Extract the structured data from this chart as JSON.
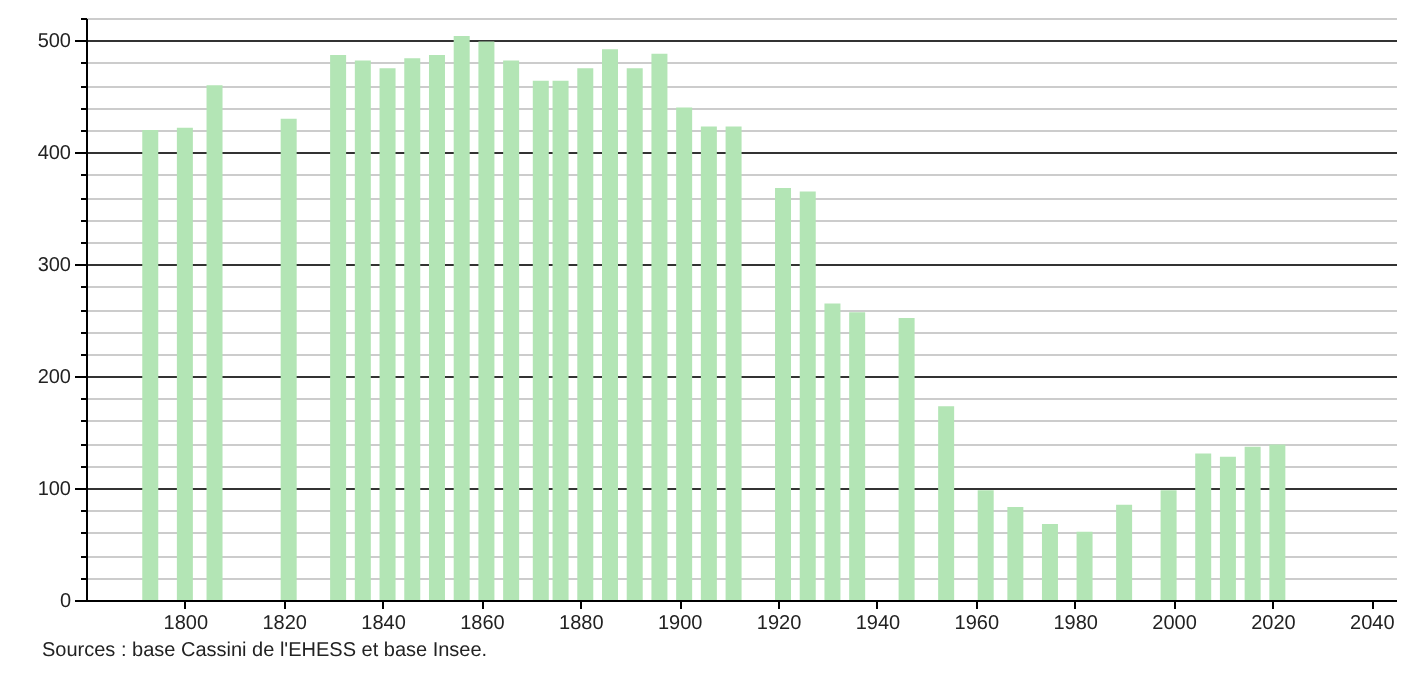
{
  "chart_data": {
    "type": "bar",
    "x": [
      1793,
      1800,
      1806,
      1821,
      1831,
      1836,
      1841,
      1846,
      1851,
      1856,
      1861,
      1866,
      1872,
      1876,
      1881,
      1886,
      1891,
      1896,
      1901,
      1906,
      1911,
      1921,
      1926,
      1931,
      1936,
      1946,
      1954,
      1962,
      1968,
      1975,
      1982,
      1990,
      1999,
      2006,
      2011,
      2016,
      2021
    ],
    "values": [
      420,
      422,
      460,
      430,
      487,
      482,
      475,
      484,
      487,
      504,
      499,
      482,
      464,
      464,
      475,
      492,
      475,
      488,
      440,
      423,
      423,
      368,
      365,
      265,
      257,
      252,
      173,
      98,
      83,
      68,
      61,
      85,
      98,
      131,
      128,
      137,
      139
    ],
    "color": "#b3e5b5",
    "xlim": [
      1780,
      2045
    ],
    "xticks": [
      1800,
      1820,
      1840,
      1860,
      1880,
      1900,
      1920,
      1940,
      1960,
      1980,
      2000,
      2020,
      2040
    ],
    "ylim": [
      0,
      520
    ],
    "yticks": [
      0,
      {
        "value": 20,
        "label": null
      },
      {
        "value": 40,
        "label": null
      },
      {
        "value": 60,
        "label": null
      },
      {
        "value": 80,
        "label": null
      },
      100,
      {
        "value": 120,
        "label": null
      },
      {
        "value": 140,
        "label": null
      },
      {
        "value": 160,
        "label": null
      },
      {
        "value": 180,
        "label": null
      },
      200,
      {
        "value": 220,
        "label": null
      },
      {
        "value": 240,
        "label": null
      },
      {
        "value": 260,
        "label": null
      },
      {
        "value": 280,
        "label": null
      },
      300,
      {
        "value": 320,
        "label": null
      },
      {
        "value": 340,
        "label": null
      },
      {
        "value": 360,
        "label": null
      },
      {
        "value": 380,
        "label": null
      },
      400,
      {
        "value": 420,
        "label": null
      },
      {
        "value": 440,
        "label": null
      },
      {
        "value": 460,
        "label": null
      },
      {
        "value": 480,
        "label": null
      },
      500,
      {
        "value": 520,
        "label": null
      }
    ],
    "grid": "y",
    "annotations": [
      "Sources : base Cassini de l'EHESS et base Insee."
    ]
  }
}
